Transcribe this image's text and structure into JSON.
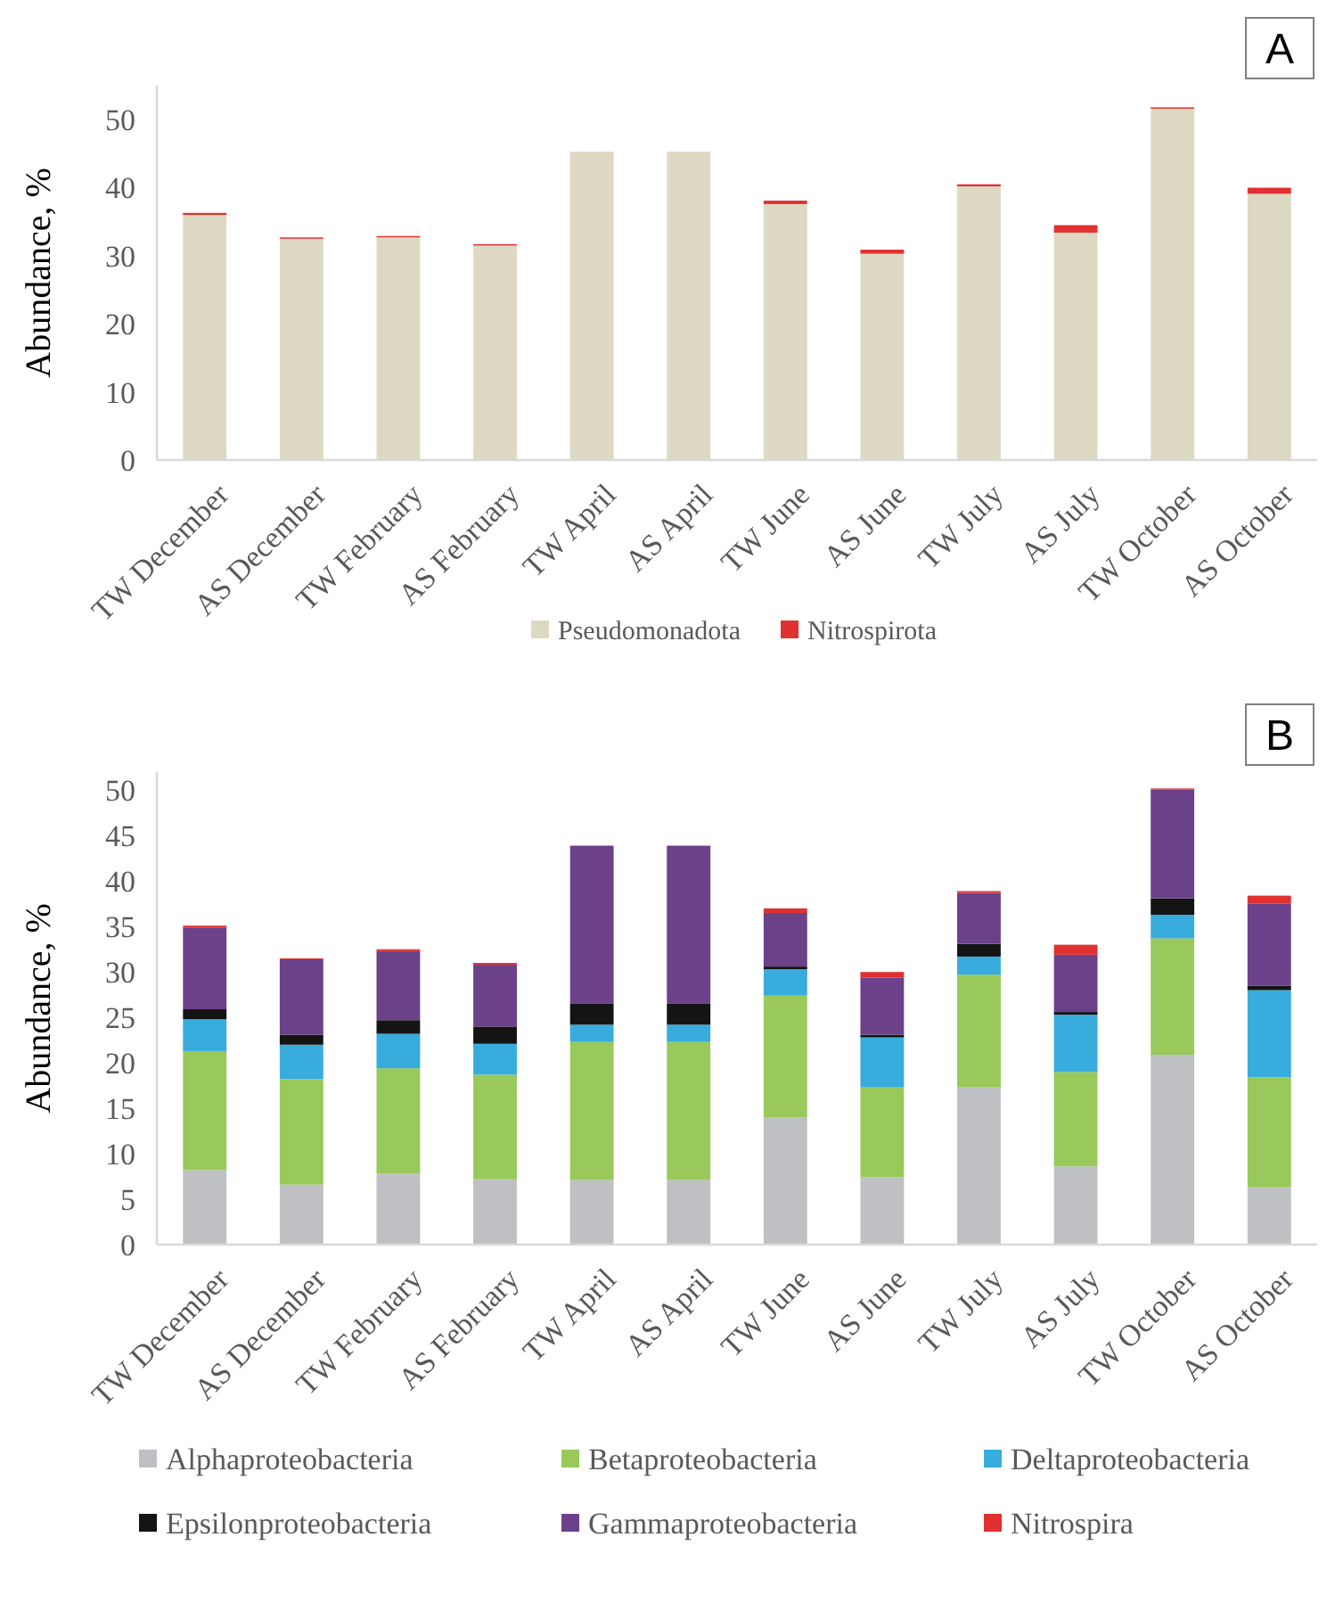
{
  "chart_data": [
    {
      "type": "bar",
      "stacked": true,
      "ylabel": "Abundance, %",
      "annotations": [
        "A"
      ],
      "categories": [
        "TW December",
        "AS December",
        "TW February",
        "AS February",
        "TW April",
        "AS April",
        "TW June",
        "AS June",
        "TW July",
        "AS July",
        "TW October",
        "AS October"
      ],
      "ylim": [
        0,
        55
      ],
      "yticks": [
        0,
        10,
        20,
        30,
        40,
        50
      ],
      "grid": false,
      "legend": "bottom",
      "series": [
        {
          "name": "Pseudomonadota",
          "color": "#ddd9c3",
          "values": [
            36,
            32.5,
            32.7,
            31.5,
            45.3,
            45.3,
            37.6,
            30.3,
            40.2,
            33.4,
            51.6,
            39.1
          ]
        },
        {
          "name": "Nitrospirota",
          "color": "#e03030",
          "values": [
            0.3,
            0.2,
            0.2,
            0.2,
            0,
            0,
            0.5,
            0.6,
            0.3,
            1.1,
            0.2,
            0.9
          ]
        }
      ]
    },
    {
      "type": "bar",
      "stacked": true,
      "ylabel": "Abundance, %",
      "annotations": [
        "B"
      ],
      "categories": [
        "TW December",
        "AS December",
        "TW February",
        "AS February",
        "TW April",
        "AS April",
        "TW June",
        "AS June",
        "TW July",
        "AS July",
        "TW October",
        "AS October"
      ],
      "ylim": [
        0,
        52
      ],
      "yticks": [
        0,
        5,
        10,
        15,
        20,
        25,
        30,
        35,
        40,
        45,
        50
      ],
      "grid": false,
      "legend": "bottom",
      "series": [
        {
          "name": "Alphaproteobacteria",
          "color": "#bfc0c4",
          "values": [
            8.2,
            6.6,
            7.8,
            7.2,
            7.1,
            7.1,
            14,
            7.4,
            17.3,
            8.6,
            20.9,
            6.3
          ]
        },
        {
          "name": "Betaproteobacteria",
          "color": "#98c95a",
          "values": [
            13.1,
            11.6,
            11.6,
            11.5,
            15.2,
            15.2,
            13.4,
            9.9,
            12.4,
            10.4,
            12.8,
            12.1
          ]
        },
        {
          "name": "Deltaproteobacteria",
          "color": "#38acdc",
          "values": [
            3.5,
            3.8,
            3.8,
            3.4,
            1.9,
            1.9,
            2.9,
            5.5,
            2,
            6.3,
            2.6,
            9.6
          ]
        },
        {
          "name": "Epsilonproteobacteria",
          "color": "#141414",
          "values": [
            1.1,
            1.1,
            1.5,
            1.9,
            2.3,
            2.3,
            0.3,
            0.3,
            1.4,
            0.3,
            1.8,
            0.5
          ]
        },
        {
          "name": "Gammaproteobacteria",
          "color": "#6b418a",
          "values": [
            9,
            8.3,
            7.6,
            6.8,
            17.4,
            17.4,
            5.9,
            6.3,
            5.6,
            6.3,
            12,
            9
          ]
        },
        {
          "name": "Nitrospira",
          "color": "#e03030",
          "values": [
            0.2,
            0.1,
            0.2,
            0.2,
            0,
            0,
            0.5,
            0.6,
            0.2,
            1.1,
            0.1,
            0.9
          ]
        }
      ]
    }
  ]
}
